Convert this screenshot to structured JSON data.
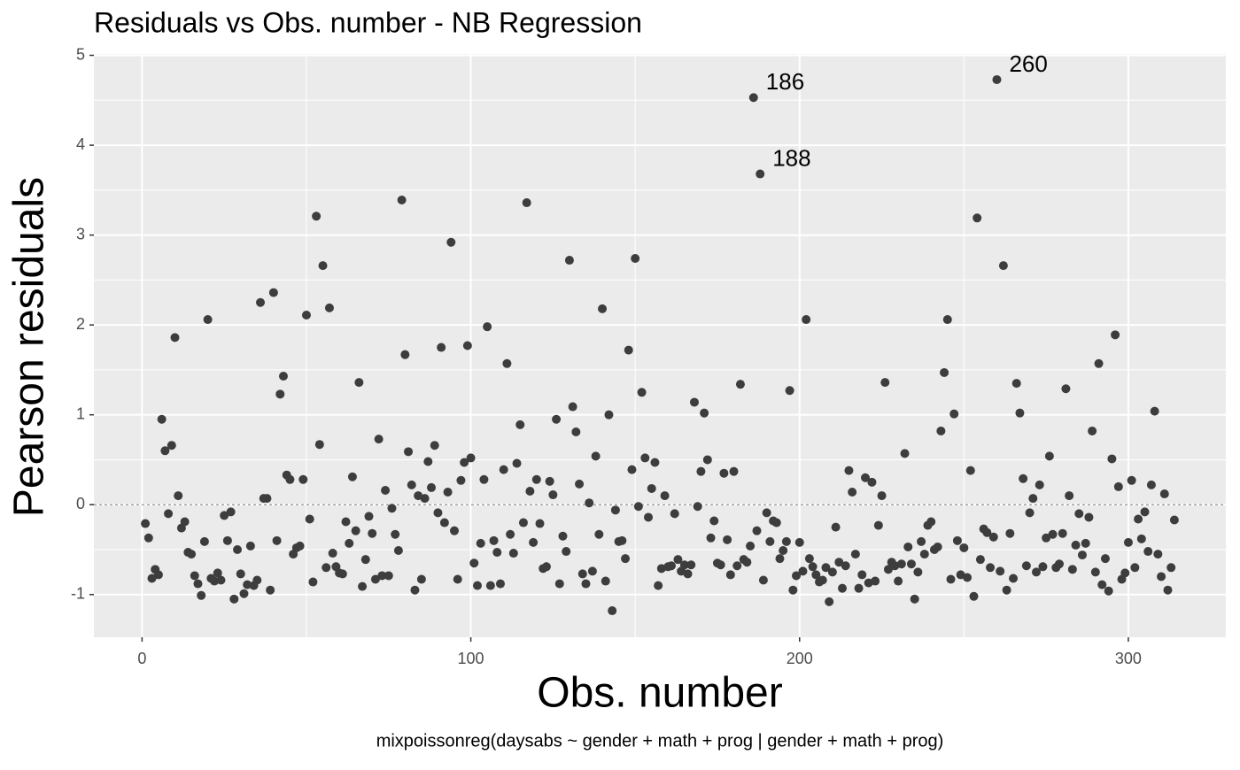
{
  "chart_data": {
    "type": "scatter",
    "title": "Residuals vs Obs. number - NB Regression",
    "x_label": "Obs. number",
    "y_label": "Pearson residuals",
    "caption": "mixpoissonreg(daysabs ~ gender + math + prog | gender + math + prog)",
    "color": "#3d3d3d",
    "grid": true,
    "hline": 0,
    "xlim": [
      -14.65,
      329.65
    ],
    "ylim": [
      -1.475,
      5.015
    ],
    "xticks": [
      0,
      100,
      200,
      300
    ],
    "yticks": [
      {
        "value": -1,
        "label": "-1"
      },
      0,
      1,
      2,
      3,
      4,
      5
    ],
    "annotations": [
      {
        "label": "186",
        "x": 186,
        "y": 4.53
      },
      {
        "label": "188",
        "x": 188,
        "y": 3.68
      },
      {
        "label": "260",
        "x": 260,
        "y": 4.73
      }
    ],
    "x": [
      1,
      2,
      3,
      4,
      5,
      6,
      7,
      8,
      9,
      10,
      11,
      12,
      13,
      14,
      15,
      16,
      17,
      18,
      19,
      20,
      21,
      22,
      23,
      24,
      25,
      26,
      27,
      28,
      29,
      30,
      31,
      32,
      33,
      34,
      35,
      36,
      37,
      38,
      39,
      40,
      41,
      42,
      43,
      44,
      45,
      46,
      47,
      48,
      49,
      50,
      51,
      52,
      53,
      54,
      55,
      56,
      57,
      58,
      59,
      60,
      61,
      62,
      63,
      64,
      65,
      66,
      67,
      68,
      69,
      70,
      71,
      72,
      73,
      74,
      75,
      76,
      77,
      78,
      79,
      80,
      81,
      82,
      83,
      84,
      85,
      86,
      87,
      88,
      89,
      90,
      91,
      92,
      93,
      94,
      95,
      96,
      97,
      98,
      99,
      100,
      101,
      102,
      103,
      104,
      105,
      106,
      107,
      108,
      109,
      110,
      111,
      112,
      113,
      114,
      115,
      116,
      117,
      118,
      119,
      120,
      121,
      122,
      123,
      124,
      125,
      126,
      127,
      128,
      129,
      130,
      131,
      132,
      133,
      134,
      135,
      136,
      137,
      138,
      139,
      140,
      141,
      142,
      143,
      144,
      145,
      146,
      147,
      148,
      149,
      150,
      151,
      152,
      153,
      154,
      155,
      156,
      157,
      158,
      159,
      160,
      161,
      162,
      163,
      164,
      165,
      166,
      167,
      168,
      169,
      170,
      171,
      172,
      173,
      174,
      175,
      176,
      177,
      178,
      179,
      180,
      181,
      182,
      183,
      184,
      185,
      186,
      187,
      188,
      189,
      190,
      191,
      192,
      193,
      194,
      195,
      196,
      197,
      198,
      199,
      200,
      201,
      202,
      203,
      204,
      205,
      206,
      207,
      208,
      209,
      210,
      211,
      212,
      213,
      214,
      215,
      216,
      217,
      218,
      219,
      220,
      221,
      222,
      223,
      224,
      225,
      226,
      227,
      228,
      229,
      230,
      231,
      232,
      233,
      234,
      235,
      236,
      237,
      238,
      239,
      240,
      241,
      242,
      243,
      244,
      245,
      246,
      247,
      248,
      249,
      250,
      251,
      252,
      253,
      254,
      255,
      256,
      257,
      258,
      259,
      260,
      261,
      262,
      263,
      264,
      265,
      266,
      267,
      268,
      269,
      270,
      271,
      272,
      273,
      274,
      275,
      276,
      277,
      278,
      279,
      280,
      281,
      282,
      283,
      284,
      285,
      286,
      287,
      288,
      289,
      290,
      291,
      292,
      293,
      294,
      295,
      296,
      297,
      298,
      299,
      300,
      301,
      302,
      303,
      304,
      305,
      306,
      307,
      308,
      309,
      310,
      311,
      312,
      313,
      314
    ],
    "values": [
      -0.21,
      -0.37,
      -0.82,
      -0.72,
      -0.78,
      0.95,
      0.6,
      -0.1,
      0.66,
      1.86,
      0.1,
      -0.26,
      -0.19,
      -0.53,
      -0.55,
      -0.79,
      -0.88,
      -1.01,
      -0.41,
      2.06,
      -0.82,
      -0.85,
      -0.76,
      -0.84,
      -0.12,
      -0.4,
      -0.08,
      -1.05,
      -0.5,
      -0.77,
      -0.99,
      -0.89,
      -0.46,
      -0.9,
      -0.84,
      2.25,
      0.07,
      0.07,
      -0.95,
      2.36,
      -0.4,
      1.23,
      1.43,
      0.33,
      0.28,
      -0.55,
      -0.48,
      -0.46,
      0.28,
      2.11,
      -0.16,
      -0.86,
      3.21,
      0.67,
      2.66,
      -0.7,
      2.19,
      -0.54,
      -0.69,
      -0.76,
      -0.77,
      -0.19,
      -0.43,
      0.31,
      -0.29,
      1.36,
      -0.91,
      -0.61,
      -0.13,
      -0.32,
      -0.83,
      0.73,
      -0.79,
      0.16,
      -0.79,
      -0.04,
      -0.33,
      -0.51,
      3.39,
      1.67,
      0.59,
      0.22,
      -0.95,
      0.1,
      -0.83,
      0.07,
      0.48,
      0.19,
      0.66,
      -0.09,
      1.75,
      -0.2,
      0.14,
      2.92,
      -0.29,
      -0.83,
      0.27,
      0.47,
      1.77,
      0.52,
      -0.65,
      -0.9,
      -0.43,
      0.28,
      1.98,
      -0.9,
      -0.4,
      -0.53,
      -0.88,
      0.39,
      1.57,
      -0.33,
      -0.54,
      0.46,
      0.89,
      -0.2,
      3.36,
      0.15,
      -0.42,
      0.28,
      -0.21,
      -0.71,
      -0.69,
      0.26,
      0.11,
      0.95,
      -0.88,
      -0.35,
      -0.52,
      2.72,
      1.09,
      0.81,
      0.23,
      -0.77,
      -0.88,
      0.02,
      -0.74,
      0.54,
      -0.33,
      2.18,
      -0.85,
      1.0,
      -1.18,
      -0.06,
      -0.41,
      -0.4,
      -0.6,
      1.72,
      0.39,
      2.74,
      -0.02,
      1.25,
      0.52,
      -0.14,
      0.18,
      0.47,
      -0.9,
      -0.71,
      0.1,
      -0.69,
      -0.68,
      -0.1,
      -0.61,
      -0.74,
      -0.67,
      -0.77,
      -0.67,
      1.14,
      -0.02,
      0.37,
      1.02,
      0.5,
      -0.37,
      -0.18,
      -0.65,
      -0.67,
      0.35,
      -0.39,
      -0.78,
      0.37,
      -0.68,
      1.34,
      -0.61,
      -0.64,
      -0.46,
      4.53,
      -0.29,
      3.68,
      -0.84,
      -0.09,
      -0.41,
      -0.18,
      -0.2,
      -0.6,
      -0.51,
      -0.41,
      1.27,
      -0.95,
      -0.79,
      -0.42,
      -0.74,
      2.06,
      -0.6,
      -0.69,
      -0.78,
      -0.86,
      -0.84,
      -0.7,
      -1.08,
      -0.75,
      -0.25,
      -0.64,
      -0.93,
      -0.68,
      0.38,
      0.14,
      -0.55,
      -0.93,
      -0.78,
      0.3,
      -0.87,
      0.25,
      -0.85,
      -0.23,
      0.1,
      1.36,
      -0.72,
      -0.64,
      -0.68,
      -0.85,
      -0.66,
      0.57,
      -0.47,
      -0.66,
      -1.05,
      -0.75,
      -0.41,
      -0.55,
      -0.23,
      -0.19,
      -0.5,
      -0.47,
      0.82,
      1.47,
      2.06,
      -0.83,
      1.01,
      -0.4,
      -0.78,
      -0.48,
      -0.81,
      0.38,
      -1.02,
      3.19,
      -0.61,
      -0.27,
      -0.31,
      -0.7,
      -0.36,
      4.73,
      -0.74,
      2.66,
      -0.95,
      -0.32,
      -0.82,
      1.35,
      1.02,
      0.29,
      -0.68,
      -0.09,
      0.07,
      -0.75,
      0.22,
      -0.69,
      -0.37,
      0.54,
      -0.33,
      -0.7,
      -0.66,
      -0.32,
      1.29,
      0.1,
      -0.72,
      -0.45,
      -0.1,
      -0.56,
      -0.43,
      -0.14,
      0.82,
      -0.75,
      1.57,
      -0.89,
      -0.6,
      -0.96,
      0.51,
      1.89,
      0.2,
      -0.83,
      -0.76,
      -0.42,
      0.27,
      -0.7,
      -0.16,
      -0.38,
      -0.08,
      -0.52,
      0.22,
      1.04,
      -0.55,
      -0.8,
      0.12,
      -0.95,
      -0.7,
      -0.17
    ]
  }
}
